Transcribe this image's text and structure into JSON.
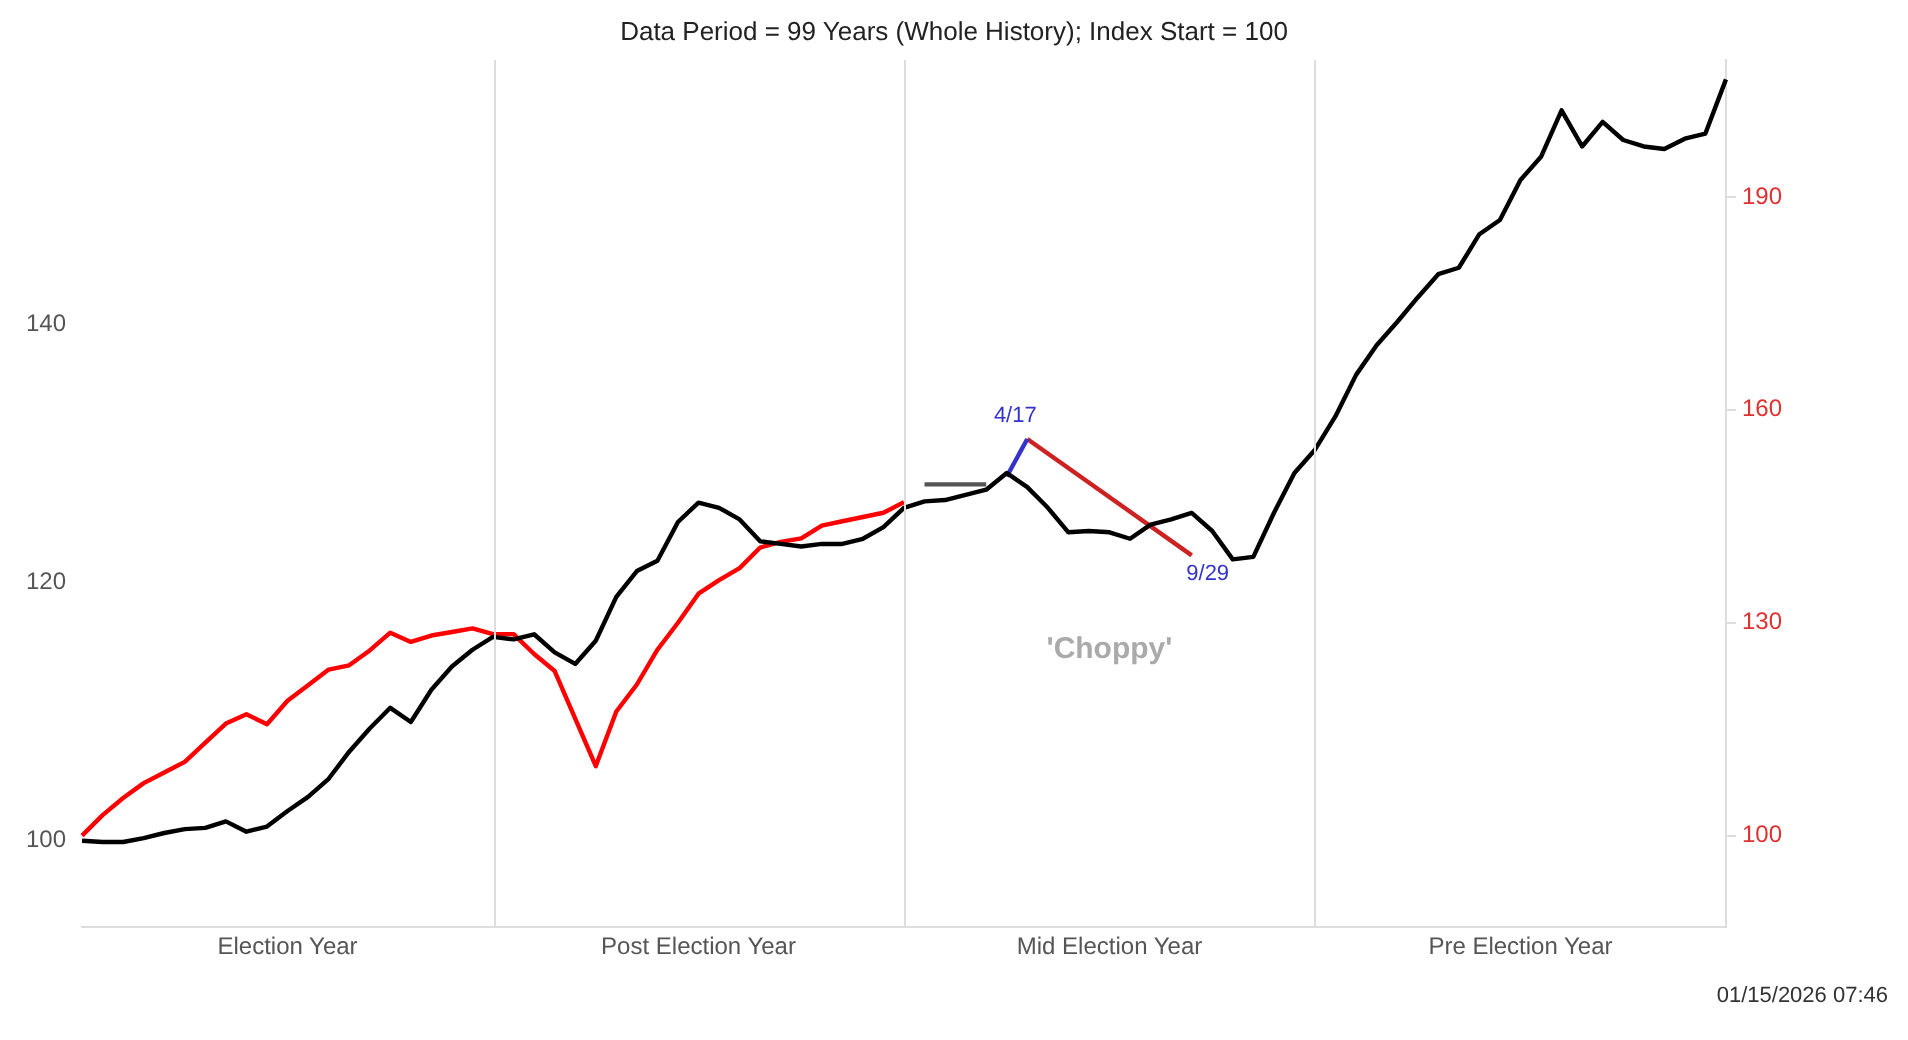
{
  "chart_data": {
    "type": "line",
    "title": "Data Period = 99 Years (Whole History); Index Start = 100",
    "categories": [
      null,
      null,
      null,
      null,
      null,
      null,
      null,
      null,
      null,
      null,
      "Election Year",
      null,
      null,
      null,
      null,
      null,
      null,
      null,
      null,
      null,
      null,
      null,
      null,
      null,
      null,
      null,
      null,
      null,
      null,
      null,
      "Post Election Year",
      null,
      null,
      null,
      null,
      null,
      null,
      null,
      null,
      null,
      null,
      null,
      null,
      null,
      null,
      null,
      null,
      null,
      null,
      null,
      "Mid Election Year",
      null,
      null,
      null,
      null,
      null,
      null,
      null,
      null,
      null,
      null,
      null,
      null,
      null,
      null,
      null,
      null,
      null,
      null,
      null,
      "Pre Election Year",
      null,
      null,
      null,
      null,
      null,
      null,
      null,
      null,
      null,
      null
    ],
    "ylim": [
      93.3,
      160.5
    ],
    "yticks": [
      100,
      120,
      140
    ],
    "y2lim": [
      87.1,
      209.3
    ],
    "y2ticks": [
      100,
      130,
      160,
      190
    ],
    "grid": false,
    "legend": false,
    "series": [
      {
        "color": "#000000",
        "values": [
          100,
          99.9,
          99.9,
          100.2,
          100.6,
          100.9,
          101,
          101.5,
          100.7,
          101.1,
          102.3,
          103.4,
          104.8,
          106.9,
          108.7,
          110.3,
          109.2,
          111.7,
          113.5,
          114.8,
          115.8,
          115.6,
          116,
          114.6,
          113.7,
          115.5,
          118.9,
          120.9,
          121.7,
          124.7,
          126.2,
          125.8,
          124.9,
          123.2,
          123,
          122.8,
          123,
          123,
          123.4,
          124.3,
          125.8,
          126.3,
          126.4,
          126.8,
          127.2,
          128.5,
          127.4,
          125.8,
          123.9,
          124,
          123.9,
          123.4,
          124.5,
          124.9,
          125.4,
          124,
          121.8,
          122,
          125.4,
          128.5,
          130.3,
          132.9,
          136.1,
          138.4,
          140.2,
          142.1,
          143.9,
          144.4,
          147,
          148.1,
          151.2,
          153,
          156.6,
          153.8,
          155.7,
          154.3,
          153.8,
          153.6,
          154.4,
          154.8,
          159
        ]
      },
      {
        "color": "#ff0000",
        "axis": "y2",
        "values": [
          100,
          102.9,
          105.3,
          107.4,
          108.9,
          110.4,
          113.1,
          115.8,
          117.1,
          115.7,
          119,
          121.2,
          123.4,
          124,
          126.1,
          128.6,
          127.3,
          128.2,
          128.7,
          129.2,
          128.4,
          128.4,
          125.6,
          123.2,
          116.5,
          109.8,
          117.5,
          121.3,
          126.2,
          130,
          134.1,
          136,
          137.7,
          140.6,
          141.4,
          141.9,
          143.7,
          144.3,
          144.9,
          145.5,
          147,
          null,
          null,
          null,
          null,
          null,
          null,
          null,
          null,
          null,
          null,
          null,
          null,
          null,
          null,
          null,
          null,
          null,
          null,
          null,
          null,
          null,
          null,
          null,
          null,
          null,
          null,
          null,
          null,
          null,
          null,
          null,
          null,
          null,
          null,
          null,
          null,
          null,
          null,
          null,
          null
        ]
      },
      {
        "color": "#555555",
        "axis": "y2",
        "values": [
          null,
          null,
          null,
          null,
          null,
          null,
          null,
          null,
          null,
          null,
          null,
          null,
          null,
          null,
          null,
          null,
          null,
          null,
          null,
          null,
          null,
          null,
          null,
          null,
          null,
          null,
          null,
          null,
          null,
          null,
          null,
          null,
          null,
          null,
          null,
          null,
          null,
          null,
          null,
          null,
          null,
          149.5,
          null,
          null,
          149.5,
          null,
          null,
          null,
          null,
          null,
          null,
          null,
          null,
          null,
          null,
          null,
          null,
          null,
          null,
          null,
          null,
          null,
          null,
          null,
          null,
          null,
          null,
          null,
          null,
          null,
          null,
          null,
          null,
          null,
          null,
          null,
          null,
          null,
          null,
          null,
          null
        ]
      },
      {
        "color": "#3333cc",
        "axis": "y2",
        "values": [
          null,
          null,
          null,
          null,
          null,
          null,
          null,
          null,
          null,
          null,
          null,
          null,
          null,
          null,
          null,
          null,
          null,
          null,
          null,
          null,
          null,
          null,
          null,
          null,
          null,
          null,
          null,
          null,
          null,
          null,
          null,
          null,
          null,
          null,
          null,
          null,
          null,
          null,
          null,
          null,
          null,
          null,
          null,
          null,
          null,
          150.6,
          155.9,
          null,
          null,
          null,
          null,
          null,
          null,
          null,
          null,
          null,
          null,
          null,
          null,
          null,
          null,
          null,
          null,
          null,
          null,
          null,
          null,
          null,
          null,
          null,
          null,
          null,
          null,
          null,
          null,
          null,
          null,
          null,
          null,
          null,
          null
        ],
        "value_labels": [
          null,
          null,
          null,
          null,
          null,
          null,
          null,
          null,
          null,
          null,
          null,
          null,
          null,
          null,
          null,
          null,
          null,
          null,
          null,
          null,
          null,
          null,
          null,
          null,
          null,
          null,
          null,
          null,
          null,
          null,
          null,
          null,
          null,
          null,
          null,
          null,
          null,
          null,
          null,
          null,
          null,
          null,
          null,
          null,
          null,
          null,
          "4/17",
          null,
          null,
          null,
          null,
          null,
          null,
          null,
          null,
          null,
          null,
          null,
          null,
          null,
          null,
          null,
          null,
          null,
          null,
          null,
          null,
          null,
          null,
          null,
          null,
          null,
          null,
          null,
          null,
          null,
          null,
          null,
          null,
          null,
          null
        ]
      },
      {
        "color": "#cc2222",
        "axis": "y2",
        "values": [
          null,
          null,
          null,
          null,
          null,
          null,
          null,
          null,
          null,
          null,
          null,
          null,
          null,
          null,
          null,
          null,
          null,
          null,
          null,
          null,
          null,
          null,
          null,
          null,
          null,
          null,
          null,
          null,
          null,
          null,
          null,
          null,
          null,
          null,
          null,
          null,
          null,
          null,
          null,
          null,
          null,
          null,
          null,
          null,
          null,
          null,
          155.9,
          null,
          null,
          null,
          null,
          null,
          null,
          null,
          139.5,
          null,
          null,
          null,
          null,
          null,
          null,
          null,
          null,
          null,
          null,
          null,
          null,
          null,
          null,
          null,
          null,
          null,
          null,
          null,
          null,
          null,
          null,
          null,
          null,
          null,
          null
        ],
        "value_labels": [
          null,
          null,
          null,
          null,
          null,
          null,
          null,
          null,
          null,
          null,
          null,
          null,
          null,
          null,
          null,
          null,
          null,
          null,
          null,
          null,
          null,
          null,
          null,
          null,
          null,
          null,
          null,
          null,
          null,
          null,
          null,
          null,
          null,
          null,
          null,
          null,
          null,
          null,
          null,
          null,
          null,
          null,
          null,
          null,
          null,
          null,
          null,
          null,
          null,
          null,
          null,
          null,
          null,
          null,
          "9/29",
          null,
          null,
          null,
          null,
          null,
          null,
          null,
          null,
          null,
          null,
          null,
          null,
          null,
          null,
          null,
          null,
          null,
          null,
          null,
          null,
          null,
          null,
          null,
          null,
          null,
          null
        ]
      }
    ],
    "annotations": [
      "'Choppy'",
      "01/15/2026 07:46"
    ]
  }
}
